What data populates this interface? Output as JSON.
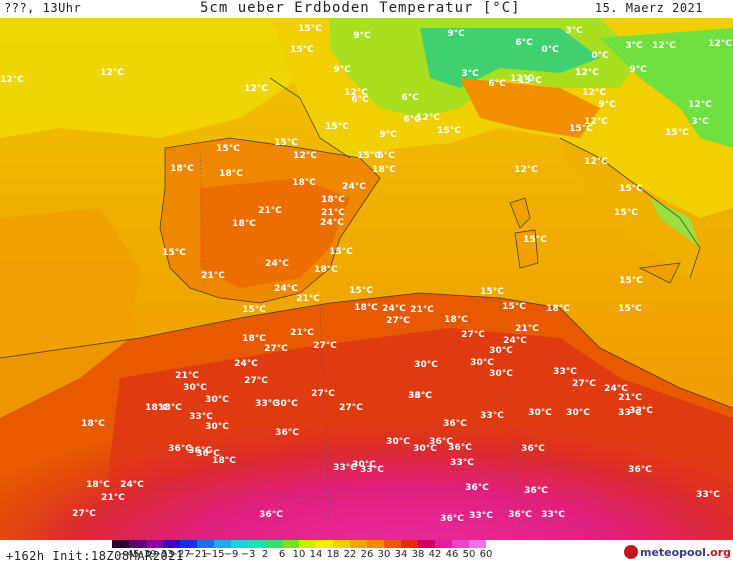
{
  "header": {
    "left": "???, 13Uhr",
    "title": "5cm ueber Erdboden Temperatur [°C]",
    "date": "15. Maerz 2021"
  },
  "footer": {
    "init": "+162h Init:18Z08MAR2021",
    "logo_main": "meteopool",
    "logo_suffix": ".org"
  },
  "legend": {
    "ticks": [
      "−45",
      "−39",
      "−33",
      "−27",
      "−21",
      "−15",
      "−9",
      "−3",
      "2",
      "6",
      "10",
      "14",
      "18",
      "22",
      "26",
      "30",
      "34",
      "38",
      "42",
      "46",
      "50",
      "60"
    ],
    "colors": [
      "#2a0030",
      "#5a0070",
      "#8a00a0",
      "#3a00c0",
      "#1a30e0",
      "#1a70f0",
      "#20a8f0",
      "#20d0e0",
      "#20e0b0",
      "#30e070",
      "#7ae020",
      "#c8f000",
      "#f0f000",
      "#f0d000",
      "#f0a800",
      "#f08800",
      "#ee5a00",
      "#e03000",
      "#d00060",
      "#e020a0",
      "#f040d0",
      "#f070f0"
    ]
  },
  "map_labels": [
    {
      "t": "15°C"
    },
    {
      "t": "9°C"
    },
    {
      "t": "9°C"
    },
    {
      "t": "3°C"
    },
    {
      "t": "6°C"
    },
    {
      "t": "0°C"
    },
    {
      "t": "3°C"
    },
    {
      "t": "12°C"
    },
    {
      "t": "12°C"
    },
    {
      "t": "12°C"
    },
    {
      "t": "12°C"
    },
    {
      "t": "15°C"
    },
    {
      "t": "9°C"
    },
    {
      "t": "3°C"
    },
    {
      "t": "6°C"
    },
    {
      "t": "12°C"
    },
    {
      "t": "12°C"
    },
    {
      "t": "0°C"
    },
    {
      "t": "15°C"
    },
    {
      "t": "9°C"
    },
    {
      "t": "12°C"
    },
    {
      "t": "12°C"
    },
    {
      "t": "6°C"
    },
    {
      "t": "6°C"
    },
    {
      "t": "6°C"
    },
    {
      "t": "12°C"
    },
    {
      "t": "12°C"
    },
    {
      "t": "15°C"
    },
    {
      "t": "9°C"
    },
    {
      "t": "12°C"
    },
    {
      "t": "3°C"
    },
    {
      "t": "15°C"
    },
    {
      "t": "15°C"
    },
    {
      "t": "12°C"
    },
    {
      "t": "15°C"
    },
    {
      "t": "9°C"
    },
    {
      "t": "6°C"
    },
    {
      "t": "15°C"
    },
    {
      "t": "12°C"
    },
    {
      "t": "12°C"
    },
    {
      "t": "15°C"
    },
    {
      "t": "15°C"
    },
    {
      "t": "18°C"
    },
    {
      "t": "18°C"
    },
    {
      "t": "18°C"
    },
    {
      "t": "24°C"
    },
    {
      "t": "18°C"
    },
    {
      "t": "12°C"
    },
    {
      "t": "15°C"
    },
    {
      "t": "18°C"
    },
    {
      "t": "21°C"
    },
    {
      "t": "21°C"
    },
    {
      "t": "18°C"
    },
    {
      "t": "24°C"
    },
    {
      "t": "15°C"
    },
    {
      "t": "21°C"
    },
    {
      "t": "24°C"
    },
    {
      "t": "15°C"
    },
    {
      "t": "18°C"
    },
    {
      "t": "15°C"
    },
    {
      "t": "15°C"
    },
    {
      "t": "15°C"
    },
    {
      "t": "24°C"
    },
    {
      "t": "21°C"
    },
    {
      "t": "15°C"
    },
    {
      "t": "15°C"
    },
    {
      "t": "18°C"
    },
    {
      "t": "24°C"
    },
    {
      "t": "21°C"
    },
    {
      "t": "15°C"
    },
    {
      "t": "15°C"
    },
    {
      "t": "18°C"
    },
    {
      "t": "15°C"
    },
    {
      "t": "27°C"
    },
    {
      "t": "18°C"
    },
    {
      "t": "18°C"
    },
    {
      "t": "21°C"
    },
    {
      "t": "27°C"
    },
    {
      "t": "21°C"
    },
    {
      "t": "24°C"
    },
    {
      "t": "27°C"
    },
    {
      "t": "27°C"
    },
    {
      "t": "30°C"
    },
    {
      "t": "21°C"
    },
    {
      "t": "24°C"
    },
    {
      "t": "27°C"
    },
    {
      "t": "30°C"
    },
    {
      "t": "30°C"
    },
    {
      "t": "27°C"
    },
    {
      "t": "30°C"
    },
    {
      "t": "33°C"
    },
    {
      "t": "27°C"
    },
    {
      "t": "24°C"
    },
    {
      "t": "21°C"
    },
    {
      "t": "18°C"
    },
    {
      "t": "30°C"
    },
    {
      "t": "18°C"
    },
    {
      "t": "30°C"
    },
    {
      "t": "33°C"
    },
    {
      "t": "30°C"
    },
    {
      "t": "33°C"
    },
    {
      "t": "27°C"
    },
    {
      "t": "30°C"
    },
    {
      "t": "33°C"
    },
    {
      "t": "36°C"
    },
    {
      "t": "33°C"
    },
    {
      "t": "30°C"
    },
    {
      "t": "33°C"
    },
    {
      "t": "18°C"
    },
    {
      "t": "30°C"
    },
    {
      "t": "36°C"
    },
    {
      "t": "33°C"
    },
    {
      "t": "36°C"
    },
    {
      "t": "30°C"
    },
    {
      "t": "36°C"
    },
    {
      "t": "36°C"
    },
    {
      "t": "18°C"
    },
    {
      "t": "30°C"
    },
    {
      "t": "30°C"
    },
    {
      "t": "36°C"
    },
    {
      "t": "36°C"
    },
    {
      "t": "33°C"
    },
    {
      "t": "33°C"
    },
    {
      "t": "36°C"
    },
    {
      "t": "33°C"
    },
    {
      "t": "36°C"
    },
    {
      "t": "18°C"
    },
    {
      "t": "24°C"
    },
    {
      "t": "21°C"
    },
    {
      "t": "36°C"
    },
    {
      "t": "36°C"
    },
    {
      "t": "36°C"
    },
    {
      "t": "27°C"
    },
    {
      "t": "36°C"
    },
    {
      "t": "36°C"
    },
    {
      "t": "33°C"
    },
    {
      "t": "36°C"
    },
    {
      "t": "33°C"
    },
    {
      "t": "33°C"
    }
  ]
}
